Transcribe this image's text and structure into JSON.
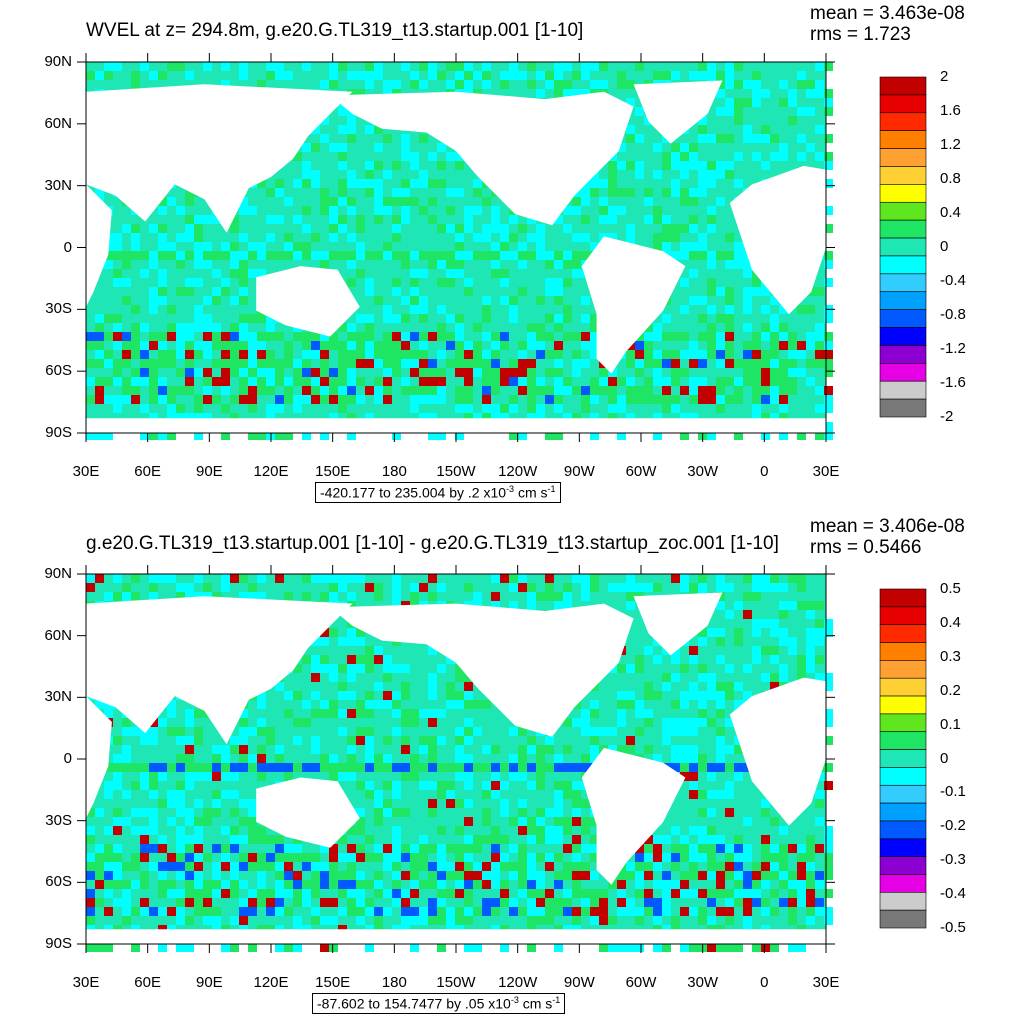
{
  "panels": [
    {
      "id": "top",
      "title": "WVEL at z= 294.8m, g.e20.G.TL319_t13.startup.001 [1-10]",
      "stats": {
        "mean": "mean = 3.463e-08",
        "rms": "rms = 1.723"
      },
      "range": {
        "text": "-420.177 to 235.004 by .2 x10",
        "exp": "-3",
        "unit": " cm s",
        "unit_exp": "-1"
      },
      "colorbar": {
        "labels": [
          "2",
          "1.6",
          "1.2",
          "0.8",
          "0.4",
          "0",
          "-0.4",
          "-0.8",
          "-1.2",
          "-1.6",
          "-2"
        ],
        "colors": [
          "#c20000",
          "#e60000",
          "#ff2a00",
          "#ff7f00",
          "#ffa033",
          "#ffd033",
          "#ffff00",
          "#5fe61e",
          "#1ee664",
          "#1ee6b4",
          "#00ffff",
          "#33ccff",
          "#00a0ff",
          "#005aff",
          "#0000ff",
          "#8c00d2",
          "#e600e6",
          "#cccccc",
          "#787878"
        ]
      }
    },
    {
      "id": "bottom",
      "title": "g.e20.G.TL319_t13.startup.001 [1-10] - g.e20.G.TL319_t13.startup_zoc.001 [1-10]",
      "stats": {
        "mean": "mean = 3.406e-08",
        "rms": "rms = 0.5466"
      },
      "range": {
        "text": "-87.602 to 154.7477 by .05 x10",
        "exp": "-3",
        "unit": " cm s",
        "unit_exp": "-1"
      },
      "colorbar": {
        "labels": [
          "0.5",
          "0.4",
          "0.3",
          "0.2",
          "0.1",
          "0",
          "-0.1",
          "-0.2",
          "-0.3",
          "-0.4",
          "-0.5"
        ],
        "colors": [
          "#c20000",
          "#e60000",
          "#ff2a00",
          "#ff7f00",
          "#ffa033",
          "#ffd033",
          "#ffff00",
          "#5fe61e",
          "#1ee664",
          "#1ee6b4",
          "#00ffff",
          "#33ccff",
          "#00a0ff",
          "#005aff",
          "#0000ff",
          "#8c00d2",
          "#e600e6",
          "#cccccc",
          "#787878"
        ]
      }
    }
  ],
  "axes": {
    "lon_labels": [
      "30E",
      "60E",
      "90E",
      "120E",
      "150E",
      "180",
      "150W",
      "120W",
      "90W",
      "60W",
      "30W",
      "0",
      "30E"
    ],
    "lat_labels": [
      "90N",
      "60N",
      "30N",
      "0",
      "30S",
      "60S",
      "90S"
    ]
  },
  "map_colors": {
    "ocean_base": "#1ee6b4",
    "ocean_alt": "#00ffff",
    "ocean_green": "#1ee664",
    "land": "#ffffff",
    "eddy_red": "#c20000",
    "eddy_blue": "#005aff"
  }
}
